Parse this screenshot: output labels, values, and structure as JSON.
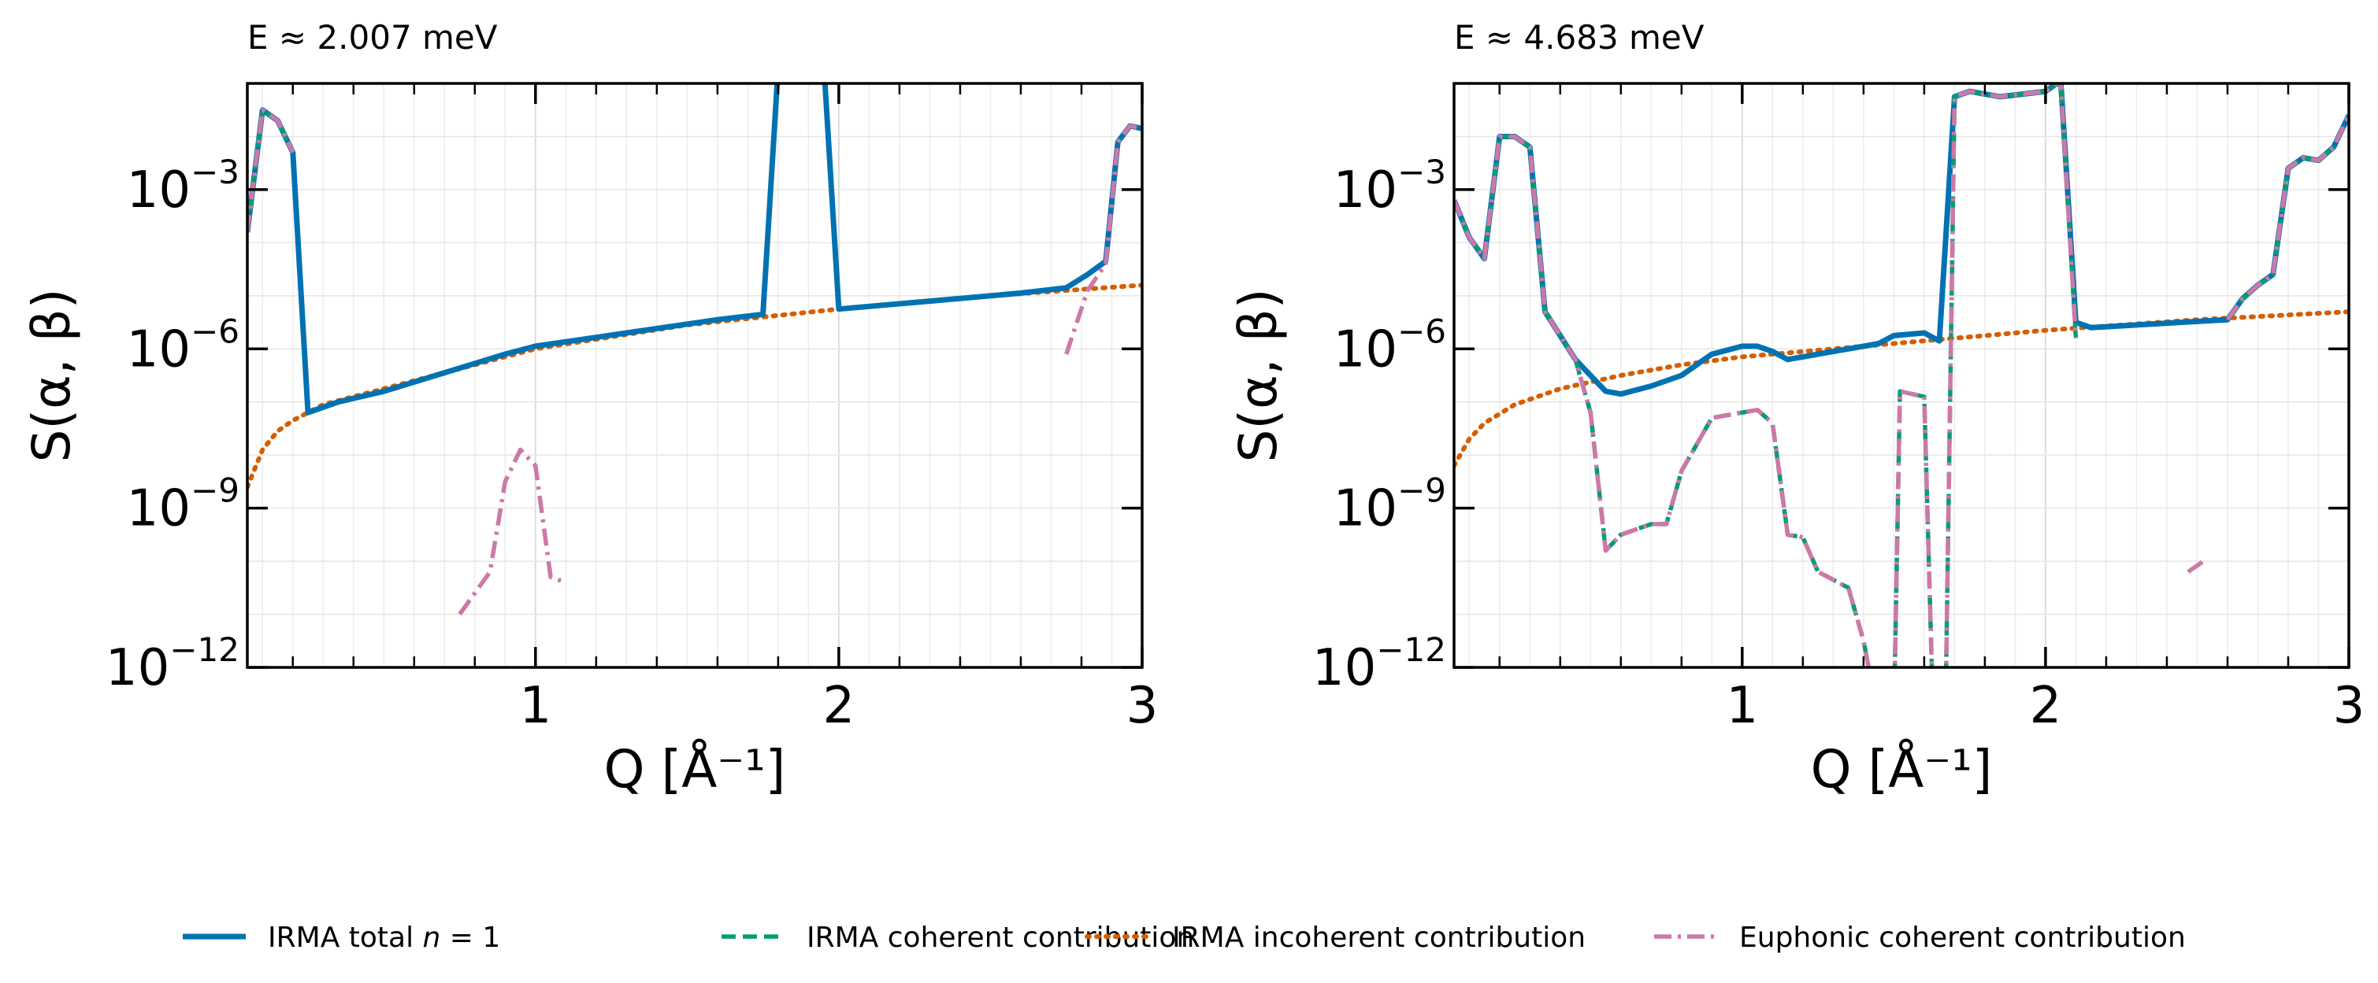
{
  "chart_data": [
    {
      "type": "line",
      "title": "E ≈ 2.007 meV",
      "xlabel": "Q [Å⁻¹]",
      "ylabel": "S(α, β)",
      "xlim": [
        0.05,
        3.0
      ],
      "ylim_log10": [
        -12,
        -1
      ],
      "yscale": "log",
      "grid": true,
      "x_ticks": [
        {
          "value": 1,
          "label": "1"
        },
        {
          "value": 2,
          "label": "2"
        },
        {
          "value": 3,
          "label": "3"
        }
      ],
      "y_ticks": [
        {
          "exp": -3,
          "label": "10",
          "sup": "−3"
        },
        {
          "exp": -6,
          "label": "10",
          "sup": "−6"
        },
        {
          "exp": -9,
          "label": "10",
          "sup": "−9"
        },
        {
          "exp": -12,
          "label": "10",
          "sup": "−12"
        }
      ],
      "series": [
        {
          "name": "IRMA total n = 1",
          "color": "#0072B2",
          "points": [
            [
              0.05,
              -3.8
            ],
            [
              0.1,
              -1.5
            ],
            [
              0.15,
              -1.7
            ],
            [
              0.2,
              -2.3
            ],
            [
              0.25,
              -7.2
            ],
            [
              0.35,
              -7.0
            ],
            [
              0.5,
              -6.8
            ],
            [
              0.7,
              -6.45
            ],
            [
              0.9,
              -6.1
            ],
            [
              1.0,
              -5.95
            ],
            [
              1.3,
              -5.7
            ],
            [
              1.6,
              -5.45
            ],
            [
              1.75,
              -5.35
            ],
            [
              1.8,
              -0.7
            ],
            [
              1.85,
              -0.6
            ],
            [
              1.95,
              -0.6
            ],
            [
              2.0,
              -5.25
            ],
            [
              2.3,
              -5.1
            ],
            [
              2.6,
              -4.95
            ],
            [
              2.75,
              -4.85
            ],
            [
              2.82,
              -4.6
            ],
            [
              2.88,
              -4.35
            ],
            [
              2.92,
              -2.1
            ],
            [
              2.96,
              -1.8
            ],
            [
              3.0,
              -1.85
            ]
          ]
        },
        {
          "name": "IRMA coherent contribution",
          "color": "#009E73",
          "points": [
            [
              0.05,
              -3.8
            ],
            [
              0.1,
              -1.5
            ],
            [
              0.15,
              -1.7
            ],
            [
              0.2,
              -2.3
            ]
          ]
        },
        {
          "name": "IRMA incoherent contribution",
          "color": "#D55E00",
          "points": [
            [
              0.05,
              -8.6
            ],
            [
              0.1,
              -7.9
            ],
            [
              0.15,
              -7.55
            ],
            [
              0.2,
              -7.35
            ],
            [
              0.3,
              -7.05
            ],
            [
              0.5,
              -6.75
            ],
            [
              0.7,
              -6.45
            ],
            [
              1.0,
              -6.0
            ],
            [
              1.5,
              -5.55
            ],
            [
              2.0,
              -5.25
            ],
            [
              2.5,
              -5.0
            ],
            [
              3.0,
              -4.8
            ]
          ]
        },
        {
          "name": "Euphonic coherent contribution",
          "color": "#CC79A7",
          "points": [
            [
              0.05,
              -3.8
            ],
            [
              0.1,
              -1.5
            ],
            [
              0.15,
              -1.7
            ],
            [
              0.2,
              -2.3
            ],
            null,
            [
              0.75,
              -11.0
            ],
            [
              0.8,
              -10.6
            ],
            [
              0.85,
              -10.2
            ],
            [
              0.9,
              -8.5
            ],
            [
              0.95,
              -7.9
            ],
            [
              1.0,
              -8.2
            ],
            [
              1.05,
              -10.3
            ],
            [
              1.1,
              -10.4
            ],
            null,
            [
              2.75,
              -6.1
            ],
            [
              2.82,
              -4.9
            ],
            [
              2.88,
              -4.4
            ],
            [
              2.92,
              -2.1
            ],
            [
              2.96,
              -1.8
            ],
            [
              3.0,
              -1.85
            ]
          ]
        }
      ]
    },
    {
      "type": "line",
      "title": "E ≈ 4.683 meV",
      "xlabel": "Q [Å⁻¹]",
      "ylabel": "S(α, β)",
      "xlim": [
        0.05,
        3.0
      ],
      "ylim_log10": [
        -12,
        -1
      ],
      "yscale": "log",
      "grid": true,
      "x_ticks": [
        {
          "value": 1,
          "label": "1"
        },
        {
          "value": 2,
          "label": "2"
        },
        {
          "value": 3,
          "label": "3"
        }
      ],
      "y_ticks": [
        {
          "exp": -3,
          "label": "10",
          "sup": "−3"
        },
        {
          "exp": -6,
          "label": "10",
          "sup": "−6"
        },
        {
          "exp": -9,
          "label": "10",
          "sup": "−9"
        },
        {
          "exp": -12,
          "label": "10",
          "sup": "−12"
        }
      ],
      "series": [
        {
          "name": "IRMA total n = 1",
          "color": "#0072B2",
          "points": [
            [
              0.05,
              -3.2
            ],
            [
              0.1,
              -3.9
            ],
            [
              0.15,
              -4.3
            ],
            [
              0.2,
              -2.0
            ],
            [
              0.25,
              -2.0
            ],
            [
              0.3,
              -2.2
            ],
            [
              0.35,
              -5.3
            ],
            [
              0.45,
              -6.2
            ],
            [
              0.55,
              -6.8
            ],
            [
              0.6,
              -6.85
            ],
            [
              0.7,
              -6.7
            ],
            [
              0.8,
              -6.5
            ],
            [
              0.9,
              -6.1
            ],
            [
              1.0,
              -5.95
            ],
            [
              1.05,
              -5.95
            ],
            [
              1.1,
              -6.05
            ],
            [
              1.15,
              -6.2
            ],
            [
              1.3,
              -6.05
            ],
            [
              1.4,
              -5.95
            ],
            [
              1.45,
              -5.9
            ],
            [
              1.5,
              -5.75
            ],
            [
              1.6,
              -5.7
            ],
            [
              1.65,
              -5.85
            ],
            [
              1.7,
              -1.25
            ],
            [
              1.75,
              -1.15
            ],
            [
              1.85,
              -1.25
            ],
            [
              2.0,
              -1.15
            ],
            [
              2.05,
              -0.95
            ],
            [
              2.1,
              -5.5
            ],
            [
              2.15,
              -5.6
            ],
            [
              2.3,
              -5.55
            ],
            [
              2.45,
              -5.5
            ],
            [
              2.6,
              -5.45
            ],
            [
              2.65,
              -5.05
            ],
            [
              2.7,
              -4.8
            ],
            [
              2.75,
              -4.6
            ],
            [
              2.8,
              -2.6
            ],
            [
              2.85,
              -2.4
            ],
            [
              2.9,
              -2.45
            ],
            [
              2.95,
              -2.2
            ],
            [
              3.0,
              -1.6
            ]
          ]
        },
        {
          "name": "IRMA coherent contribution",
          "color": "#009E73",
          "points": [
            [
              0.05,
              -3.2
            ],
            [
              0.1,
              -3.9
            ],
            [
              0.15,
              -4.3
            ],
            [
              0.2,
              -2.0
            ],
            [
              0.25,
              -2.0
            ],
            [
              0.3,
              -2.2
            ],
            [
              0.35,
              -5.3
            ],
            [
              0.45,
              -6.2
            ],
            [
              0.5,
              -7.2
            ],
            [
              0.55,
              -9.8
            ],
            [
              0.6,
              -9.5
            ],
            [
              0.7,
              -9.3
            ],
            [
              0.75,
              -9.3
            ],
            [
              0.8,
              -8.3
            ],
            [
              0.9,
              -7.3
            ],
            [
              1.0,
              -7.2
            ],
            [
              1.05,
              -7.15
            ],
            [
              1.1,
              -7.4
            ],
            [
              1.15,
              -9.5
            ],
            [
              1.2,
              -9.55
            ],
            [
              1.25,
              -10.2
            ],
            [
              1.35,
              -10.5
            ],
            [
              1.4,
              -11.5
            ],
            [
              1.45,
              -13
            ],
            null,
            [
              1.5,
              -13
            ],
            [
              1.52,
              -6.8
            ],
            [
              1.6,
              -6.9
            ],
            [
              1.63,
              -13
            ],
            null,
            [
              1.67,
              -13
            ],
            [
              1.7,
              -1.25
            ],
            [
              1.75,
              -1.15
            ],
            [
              1.85,
              -1.25
            ],
            [
              2.0,
              -1.15
            ],
            [
              2.05,
              -0.95
            ],
            [
              2.1,
              -5.8
            ],
            null,
            [
              2.6,
              -5.45
            ],
            [
              2.65,
              -5.05
            ],
            [
              2.7,
              -4.8
            ],
            [
              2.75,
              -4.6
            ],
            [
              2.8,
              -2.6
            ],
            [
              2.85,
              -2.4
            ],
            [
              2.9,
              -2.45
            ],
            [
              2.95,
              -2.2
            ],
            [
              3.0,
              -1.6
            ]
          ]
        },
        {
          "name": "IRMA incoherent contribution",
          "color": "#D55E00",
          "points": [
            [
              0.05,
              -8.2
            ],
            [
              0.1,
              -7.7
            ],
            [
              0.15,
              -7.4
            ],
            [
              0.25,
              -7.05
            ],
            [
              0.4,
              -6.75
            ],
            [
              0.6,
              -6.5
            ],
            [
              0.8,
              -6.3
            ],
            [
              1.0,
              -6.15
            ],
            [
              1.5,
              -5.9
            ],
            [
              2.0,
              -5.65
            ],
            [
              2.5,
              -5.45
            ],
            [
              3.0,
              -5.3
            ]
          ]
        },
        {
          "name": "Euphonic coherent contribution",
          "color": "#CC79A7",
          "points": [
            [
              0.05,
              -3.2
            ],
            [
              0.1,
              -3.9
            ],
            [
              0.15,
              -4.3
            ],
            [
              0.2,
              -2.0
            ],
            [
              0.25,
              -2.0
            ],
            [
              0.3,
              -2.2
            ],
            [
              0.35,
              -5.3
            ],
            [
              0.45,
              -6.2
            ],
            [
              0.5,
              -7.2
            ],
            [
              0.55,
              -9.8
            ],
            [
              0.6,
              -9.5
            ],
            [
              0.7,
              -9.3
            ],
            [
              0.75,
              -9.3
            ],
            [
              0.8,
              -8.3
            ],
            [
              0.9,
              -7.3
            ],
            [
              1.0,
              -7.2
            ],
            [
              1.05,
              -7.15
            ],
            [
              1.1,
              -7.4
            ],
            [
              1.15,
              -9.5
            ],
            [
              1.2,
              -9.55
            ],
            [
              1.25,
              -10.2
            ],
            [
              1.35,
              -10.5
            ],
            [
              1.4,
              -11.5
            ],
            [
              1.45,
              -13
            ],
            null,
            [
              1.5,
              -13
            ],
            [
              1.52,
              -6.8
            ],
            [
              1.6,
              -6.9
            ],
            [
              1.63,
              -13
            ],
            null,
            [
              1.67,
              -13
            ],
            [
              1.7,
              -1.25
            ],
            [
              1.75,
              -1.15
            ],
            [
              1.85,
              -1.25
            ],
            [
              2.0,
              -1.15
            ],
            [
              2.05,
              -0.95
            ],
            [
              2.1,
              -5.8
            ],
            null,
            [
              2.47,
              -10.2
            ],
            [
              2.52,
              -10.0
            ],
            null,
            [
              2.6,
              -5.45
            ],
            [
              2.65,
              -5.05
            ],
            [
              2.7,
              -4.8
            ],
            [
              2.75,
              -4.6
            ],
            [
              2.8,
              -2.6
            ],
            [
              2.85,
              -2.4
            ],
            [
              2.9,
              -2.45
            ],
            [
              2.95,
              -2.2
            ],
            [
              3.0,
              -1.6
            ]
          ]
        }
      ]
    }
  ],
  "legend": {
    "placement": "bottom-center",
    "items": [
      {
        "label": "IRMA total ",
        "italic": "n",
        "suffix": " = 1",
        "color": "#0072B2",
        "style": "solid"
      },
      {
        "label": "IRMA coherent contribution",
        "color": "#009E73",
        "style": "dashed"
      },
      {
        "label": "IRMA incoherent contribution",
        "color": "#D55E00",
        "style": "dotted"
      },
      {
        "label": "Euphonic coherent contribution",
        "color": "#CC79A7",
        "style": "dashdot"
      }
    ]
  }
}
